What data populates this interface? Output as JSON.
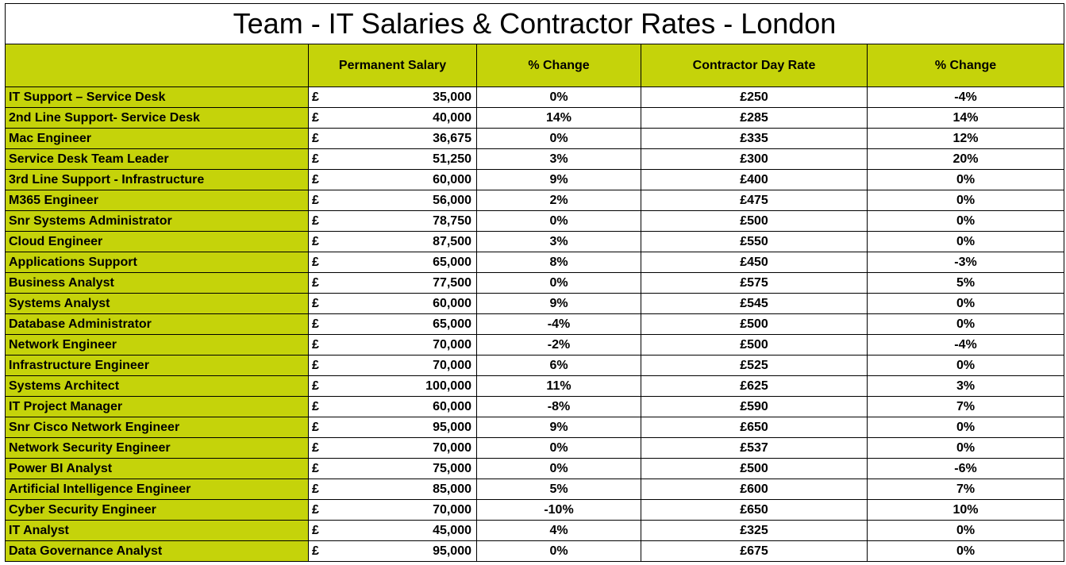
{
  "title": "Team - IT Salaries & Contractor Rates - London",
  "table": {
    "header": [
      "Permanent Salary",
      "% Change",
      "Contractor Day Rate",
      "% Change"
    ],
    "rows": [
      [
        "IT Support – Service Desk",
        "£",
        "35,000",
        "0%",
        "£250",
        "-4%"
      ],
      [
        "2nd Line Support- Service Desk",
        "£",
        "40,000",
        "14%",
        "£285",
        "14%"
      ],
      [
        "Mac Engineer",
        "£",
        "36,675",
        "0%",
        "£335",
        "12%"
      ],
      [
        "Service Desk Team Leader",
        "£",
        "51,250",
        "3%",
        "£300",
        "20%"
      ],
      [
        "3rd Line Support - Infrastructure",
        "£",
        "60,000",
        "9%",
        "£400",
        "0%"
      ],
      [
        "M365 Engineer",
        "£",
        "56,000",
        "2%",
        "£475",
        "0%"
      ],
      [
        "Snr Systems Administrator",
        "£",
        "78,750",
        "0%",
        "£500",
        "0%"
      ],
      [
        "Cloud Engineer",
        "£",
        "87,500",
        "3%",
        "£550",
        "0%"
      ],
      [
        "Applications Support",
        "£",
        "65,000",
        "8%",
        "£450",
        "-3%"
      ],
      [
        "Business Analyst",
        "£",
        "77,500",
        "0%",
        "£575",
        "5%"
      ],
      [
        "Systems Analyst",
        "£",
        "60,000",
        "9%",
        "£545",
        "0%"
      ],
      [
        "Database Administrator",
        "£",
        "65,000",
        "-4%",
        "£500",
        "0%"
      ],
      [
        "Network Engineer",
        "£",
        "70,000",
        "-2%",
        "£500",
        "-4%"
      ],
      [
        "Infrastructure Engineer",
        "£",
        "70,000",
        "6%",
        "£525",
        "0%"
      ],
      [
        "Systems Architect",
        "£",
        "100,000",
        "11%",
        "£625",
        "3%"
      ],
      [
        "IT Project Manager",
        "£",
        "60,000",
        "-8%",
        "£590",
        "7%"
      ],
      [
        "Snr Cisco Network Engineer",
        "£",
        "95,000",
        "9%",
        "£650",
        "0%"
      ],
      [
        "Network Security Engineer",
        "£",
        "70,000",
        "0%",
        "£537",
        "0%"
      ],
      [
        "Power BI Analyst",
        "£",
        "75,000",
        "0%",
        "£500",
        "-6%"
      ],
      [
        "Artificial Intelligence Engineer",
        "£",
        "85,000",
        "5%",
        "£600",
        "7%"
      ],
      [
        "Cyber Security Engineer",
        "£",
        "70,000",
        "-10%",
        "£650",
        "10%"
      ],
      [
        "IT Analyst",
        "£",
        "45,000",
        "4%",
        "£325",
        "0%"
      ],
      [
        "Data Governance Analyst",
        "£",
        "95,000",
        "0%",
        "£675",
        "0%"
      ]
    ]
  }
}
